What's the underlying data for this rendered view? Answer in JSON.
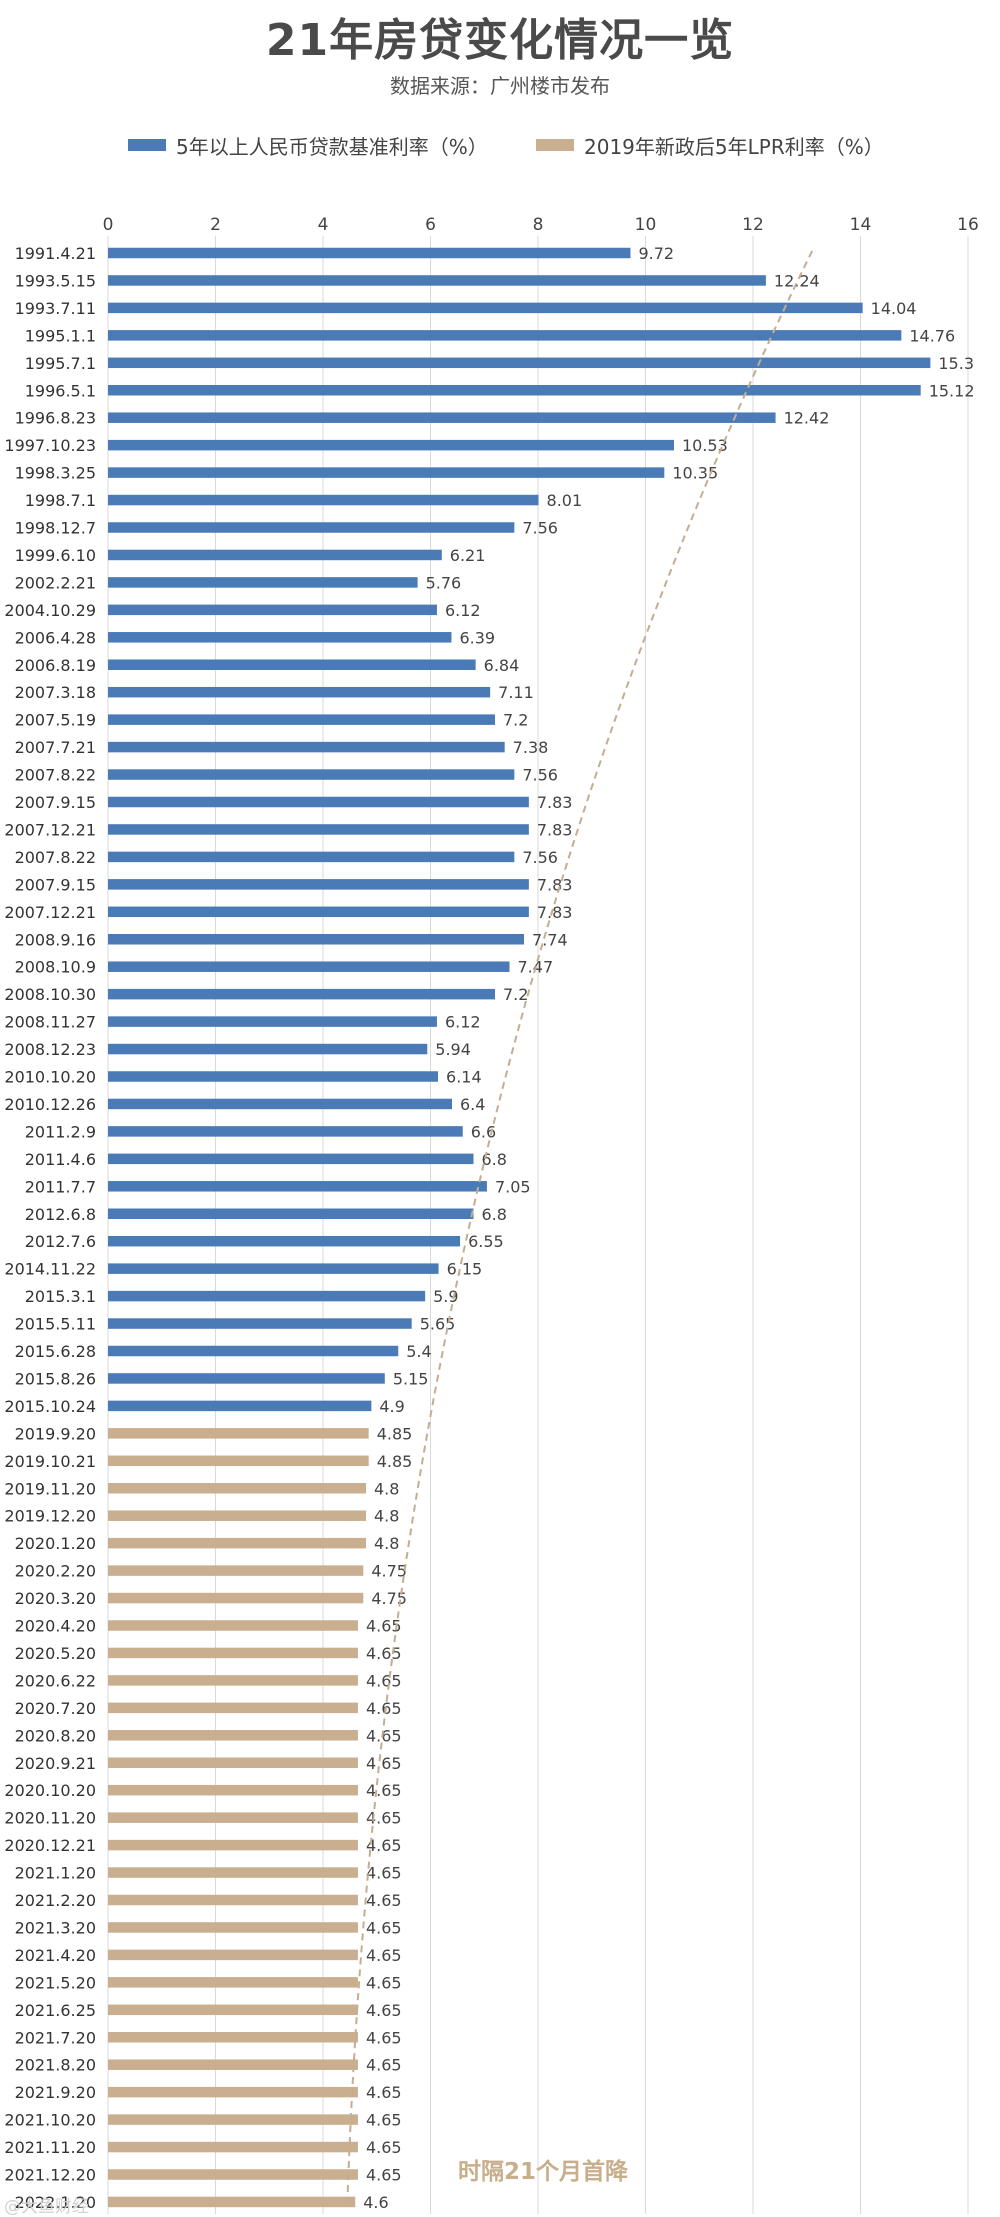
{
  "chart_data": {
    "type": "bar",
    "orientation": "horizontal",
    "title": "21年房贷变化情况一览",
    "subtitle": "数据来源：广州楼市发布",
    "xlim": [
      0,
      16
    ],
    "xticks": [
      0,
      2,
      4,
      6,
      8,
      10,
      12,
      14,
      16
    ],
    "grid": true,
    "legend_position": "top",
    "series": [
      {
        "name": "5年以上人民币贷款基准利率（%）",
        "color": "#4a7bb7",
        "categories": [
          "1991.4.21",
          "1993.5.15",
          "1993.7.11",
          "1995.1.1",
          "1995.7.1",
          "1996.5.1",
          "1996.8.23",
          "1997.10.23",
          "1998.3.25",
          "1998.7.1",
          "1998.12.7",
          "1999.6.10",
          "2002.2.21",
          "2004.10.29",
          "2006.4.28",
          "2006.8.19",
          "2007.3.18",
          "2007.5.19",
          "2007.7.21",
          "2007.8.22",
          "2007.9.15",
          "2007.12.21",
          "2007.8.22",
          "2007.9.15",
          "2007.12.21",
          "2008.9.16",
          "2008.10.9",
          "2008.10.30",
          "2008.11.27",
          "2008.12.23",
          "2010.10.20",
          "2010.12.26",
          "2011.2.9",
          "2011.4.6",
          "2011.7.7",
          "2012.6.8",
          "2012.7.6",
          "2014.11.22",
          "2015.3.1",
          "2015.5.11",
          "2015.6.28",
          "2015.8.26",
          "2015.10.24"
        ],
        "values": [
          9.72,
          12.24,
          14.04,
          14.76,
          15.3,
          15.12,
          12.42,
          10.53,
          10.35,
          8.01,
          7.56,
          6.21,
          5.76,
          6.12,
          6.39,
          6.84,
          7.11,
          7.2,
          7.38,
          7.56,
          7.83,
          7.83,
          7.56,
          7.83,
          7.83,
          7.74,
          7.47,
          7.2,
          6.12,
          5.94,
          6.14,
          6.4,
          6.6,
          6.8,
          7.05,
          6.8,
          6.55,
          6.15,
          5.9,
          5.65,
          5.4,
          5.15,
          4.9
        ]
      },
      {
        "name": "2019年新政后5年LPR利率（%）",
        "color": "#c9af8f",
        "categories": [
          "2019.9.20",
          "2019.10.21",
          "2019.11.20",
          "2019.12.20",
          "2020.1.20",
          "2020.2.20",
          "2020.3.20",
          "2020.4.20",
          "2020.5.20",
          "2020.6.22",
          "2020.7.20",
          "2020.8.20",
          "2020.9.21",
          "2020.10.20",
          "2020.11.20",
          "2020.12.21",
          "2021.1.20",
          "2021.2.20",
          "2021.3.20",
          "2021.4.20",
          "2021.5.20",
          "2021.6.25",
          "2021.7.20",
          "2021.8.20",
          "2021.9.20",
          "2021.10.20",
          "2021.11.20",
          "2021.12.20",
          "2022.1.20"
        ],
        "values": [
          4.85,
          4.85,
          4.8,
          4.8,
          4.8,
          4.75,
          4.75,
          4.65,
          4.65,
          4.65,
          4.65,
          4.65,
          4.65,
          4.65,
          4.65,
          4.65,
          4.65,
          4.65,
          4.65,
          4.65,
          4.65,
          4.65,
          4.65,
          4.65,
          4.65,
          4.65,
          4.65,
          4.65,
          4.6
        ]
      }
    ],
    "annotation": "时隔21个月首降",
    "watermark": "@大鱼财经"
  }
}
